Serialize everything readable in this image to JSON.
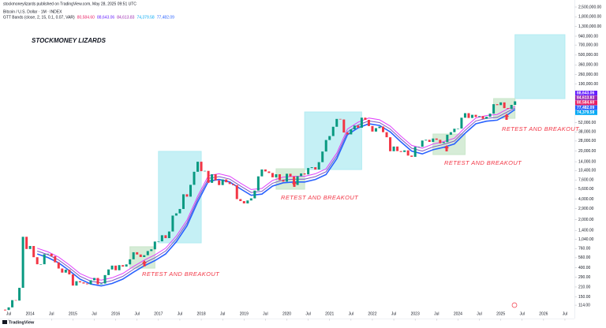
{
  "header": {
    "publisher": "stockmoneylizards published on TradingView.com, May 28, 2025 09:51 UTC",
    "symbol": "Bitcoin / U.S. Dollar · 1M · INDEX",
    "indicator": "GTT Bands (close, 2, 15, 0.1, 0.07, VAR)",
    "logo": "TradingView"
  },
  "chart_data": {
    "type": "candlestick",
    "title": "STOCKMONEY LIZARDS",
    "log_scale": true,
    "grid": false,
    "up_color": "#089981",
    "down_color": "#f23645",
    "x": [
      "2013-06",
      "2013-07",
      "2013-08",
      "2013-09",
      "2013-10",
      "2013-11",
      "2013-12",
      "2014-01",
      "2014-02",
      "2014-03",
      "2014-04",
      "2014-05",
      "2014-06",
      "2014-07",
      "2014-08",
      "2014-09",
      "2014-10",
      "2014-11",
      "2014-12",
      "2015-01",
      "2015-02",
      "2015-03",
      "2015-04",
      "2015-05",
      "2015-06",
      "2015-07",
      "2015-08",
      "2015-09",
      "2015-10",
      "2015-11",
      "2015-12",
      "2016-01",
      "2016-02",
      "2016-03",
      "2016-04",
      "2016-05",
      "2016-06",
      "2016-07",
      "2016-08",
      "2016-09",
      "2016-10",
      "2016-11",
      "2016-12",
      "2017-01",
      "2017-02",
      "2017-03",
      "2017-04",
      "2017-05",
      "2017-06",
      "2017-07",
      "2017-08",
      "2017-09",
      "2017-10",
      "2017-11",
      "2017-12",
      "2018-01",
      "2018-02",
      "2018-03",
      "2018-04",
      "2018-05",
      "2018-06",
      "2018-07",
      "2018-08",
      "2018-09",
      "2018-10",
      "2018-11",
      "2018-12",
      "2019-01",
      "2019-02",
      "2019-03",
      "2019-04",
      "2019-05",
      "2019-06",
      "2019-07",
      "2019-08",
      "2019-09",
      "2019-10",
      "2019-11",
      "2019-12",
      "2020-01",
      "2020-02",
      "2020-03",
      "2020-04",
      "2020-05",
      "2020-06",
      "2020-07",
      "2020-08",
      "2020-09",
      "2020-10",
      "2020-11",
      "2020-12",
      "2021-01",
      "2021-02",
      "2021-03",
      "2021-04",
      "2021-05",
      "2021-06",
      "2021-07",
      "2021-08",
      "2021-09",
      "2021-10",
      "2021-11",
      "2021-12",
      "2022-01",
      "2022-02",
      "2022-03",
      "2022-04",
      "2022-05",
      "2022-06",
      "2022-07",
      "2022-08",
      "2022-09",
      "2022-10",
      "2022-11",
      "2022-12",
      "2023-01",
      "2023-02",
      "2023-03",
      "2023-04",
      "2023-05",
      "2023-06",
      "2023-07",
      "2023-08",
      "2023-09",
      "2023-10",
      "2023-11",
      "2023-12",
      "2024-01",
      "2024-02",
      "2024-03",
      "2024-04",
      "2024-05",
      "2024-06",
      "2024-07",
      "2024-08",
      "2024-09",
      "2024-10",
      "2024-11",
      "2024-12",
      "2025-01",
      "2025-02",
      "2025-03",
      "2025-04",
      "2025-05"
    ],
    "values": [
      97,
      106,
      135,
      133,
      204,
      1130,
      750,
      830,
      570,
      450,
      450,
      630,
      640,
      590,
      480,
      390,
      340,
      375,
      320,
      220,
      255,
      245,
      236,
      230,
      263,
      284,
      230,
      236,
      313,
      378,
      430,
      368,
      437,
      416,
      448,
      531,
      673,
      624,
      573,
      609,
      700,
      742,
      963,
      970,
      1190,
      1080,
      1350,
      2300,
      2480,
      2870,
      4700,
      4340,
      6450,
      10000,
      14000,
      10200,
      10300,
      6900,
      9200,
      7500,
      6400,
      7730,
      7030,
      6630,
      6370,
      4000,
      3740,
      3460,
      3820,
      4100,
      5320,
      8570,
      10800,
      10100,
      9600,
      8300,
      9200,
      7550,
      7190,
      9350,
      8550,
      6420,
      8620,
      9450,
      9140,
      11330,
      11650,
      10780,
      13800,
      19700,
      29000,
      33100,
      45200,
      58800,
      57700,
      37300,
      35000,
      41500,
      47100,
      43800,
      61300,
      57000,
      46300,
      38500,
      43200,
      45500,
      37700,
      31800,
      19900,
      23300,
      20000,
      19400,
      20500,
      17200,
      16500,
      23100,
      23100,
      28500,
      29200,
      27200,
      30500,
      29200,
      26000,
      27000,
      34600,
      37700,
      42300,
      42600,
      61200,
      71300,
      60700,
      67500,
      62700,
      64600,
      59000,
      63300,
      70200,
      96400,
      93400,
      102400,
      84400,
      82500,
      94200,
      106000
    ],
    "bands_x": [
      "2014-03",
      "2014-06",
      "2014-09",
      "2014-12",
      "2015-03",
      "2015-06",
      "2015-09",
      "2015-12",
      "2016-03",
      "2016-06",
      "2016-09",
      "2016-12",
      "2017-03",
      "2017-06",
      "2017-09",
      "2017-12",
      "2018-03",
      "2018-06",
      "2018-09",
      "2018-12",
      "2019-03",
      "2019-06",
      "2019-09",
      "2019-12",
      "2020-03",
      "2020-06",
      "2020-09",
      "2020-12",
      "2021-03",
      "2021-06",
      "2021-09",
      "2021-12",
      "2022-03",
      "2022-06",
      "2022-09",
      "2022-12",
      "2023-03",
      "2023-06",
      "2023-09",
      "2023-12",
      "2024-03",
      "2024-06",
      "2024-09",
      "2024-12",
      "2025-03",
      "2025-05"
    ],
    "bands": [
      {
        "color": "#e040fb",
        "values": [
          770,
          682,
          572,
          440,
          330,
          281,
          264,
          286,
          330,
          418,
          517,
          616,
          770,
          1155,
          1980,
          4400,
          8800,
          9350,
          8580,
          6820,
          5500,
          5720,
          7480,
          8360,
          8580,
          8580,
          9350,
          11000,
          18700,
          41800,
          52800,
          60500,
          57200,
          46200,
          33000,
          24200,
          22000,
          25300,
          27500,
          30800,
          44000,
          60500,
          66000,
          68200,
          82500,
          88643.06
        ]
      },
      {
        "color": "#7e57c2",
        "values": [
          700,
          620,
          520,
          400,
          300,
          255,
          240,
          260,
          300,
          380,
          470,
          560,
          700,
          1050,
          1800,
          4000,
          8000,
          8500,
          7800,
          6200,
          5000,
          5200,
          6800,
          7600,
          7800,
          7800,
          8500,
          10000,
          17000,
          38000,
          48000,
          55000,
          52000,
          42000,
          30000,
          22000,
          20000,
          23000,
          25000,
          28000,
          40000,
          55000,
          60000,
          62000,
          75000,
          84613.83
        ]
      },
      {
        "color": "#2962ff",
        "values": [
          636,
          564,
          473,
          364,
          273,
          232,
          218,
          236,
          273,
          345,
          427,
          509,
          636,
          955,
          1636,
          3636,
          7273,
          7727,
          7091,
          5636,
          4545,
          4727,
          6182,
          6909,
          7091,
          7091,
          7727,
          9091,
          15455,
          34545,
          43636,
          50000,
          47273,
          38182,
          27273,
          20000,
          18182,
          20909,
          22727,
          25455,
          36364,
          50000,
          54545,
          56364,
          68182,
          80584.6
        ]
      }
    ],
    "price_labels": [
      {
        "value": 88643.06,
        "label": "88,643.06",
        "color": "#651fff"
      },
      {
        "value": 84613.83,
        "label": "84,613.83",
        "color": "#9c27b0"
      },
      {
        "value": 80584.6,
        "label": "80,584.60",
        "color": "#e91e63"
      },
      {
        "value": 77482.09,
        "label": "77,482.09",
        "color": "#2962ff"
      },
      {
        "value": 74379.58,
        "label": "74,379.58",
        "color": "#03a9f4"
      }
    ],
    "boxes": [
      {
        "x": [
          "2017-01",
          "2018-01"
        ],
        "y": [
          922,
          19800
        ],
        "color": "#b2ebf2"
      },
      {
        "x": [
          "2020-06",
          "2021-10"
        ],
        "y": [
          10770,
          74200
        ],
        "color": "#b2ebf2"
      },
      {
        "x": [
          "2025-05",
          "2026-07"
        ],
        "y": [
          116300,
          990000
        ],
        "color": "#b2ebf2"
      },
      {
        "x": [
          "2016-05",
          "2016-12"
        ],
        "y": [
          395,
          809
        ],
        "color": "#c8e6c9"
      },
      {
        "x": [
          "2019-10",
          "2020-06"
        ],
        "y": [
          5570,
          11050
        ],
        "color": "#c8e6c9"
      },
      {
        "x": [
          "2023-06",
          "2024-03"
        ],
        "y": [
          17800,
          35420
        ],
        "color": "#c8e6c9"
      },
      {
        "x": [
          "2024-11",
          "2025-05"
        ],
        "y": [
          60000,
          116300
        ],
        "color": "#c8e6c9"
      }
    ],
    "annotations": [
      "RETEST AND BREAKOUT",
      "RETEST AND BREAKOUT",
      "RETEST AND BREAKOUT",
      "RETEST AND BREAKOUT"
    ],
    "xlim": [
      "2013-05",
      "2026-09"
    ],
    "xticks": [
      {
        "value": "2013-07",
        "label": "Jul"
      },
      {
        "value": "2014-01",
        "label": "2014"
      },
      {
        "value": "2014-07",
        "label": "Jul"
      },
      {
        "value": "2015-01",
        "label": "2015"
      },
      {
        "value": "2015-07",
        "label": "Jul"
      },
      {
        "value": "2016-01",
        "label": "2016"
      },
      {
        "value": "2016-07",
        "label": "Jul"
      },
      {
        "value": "2017-01",
        "label": "2017"
      },
      {
        "value": "2017-07",
        "label": "Jul"
      },
      {
        "value": "2018-01",
        "label": "2018"
      },
      {
        "value": "2018-07",
        "label": "Jul"
      },
      {
        "value": "2019-01",
        "label": "2019"
      },
      {
        "value": "2019-07",
        "label": "Jul"
      },
      {
        "value": "2020-01",
        "label": "2020"
      },
      {
        "value": "2020-07",
        "label": "Jul"
      },
      {
        "value": "2021-01",
        "label": "2021"
      },
      {
        "value": "2021-07",
        "label": "Jul"
      },
      {
        "value": "2022-01",
        "label": "2022"
      },
      {
        "value": "2022-07",
        "label": "Jul"
      },
      {
        "value": "2023-01",
        "label": "2023"
      },
      {
        "value": "2023-07",
        "label": "Jul"
      },
      {
        "value": "2024-01",
        "label": "2024"
      },
      {
        "value": "2024-07",
        "label": "Jul"
      },
      {
        "value": "2025-01",
        "label": "2025"
      },
      {
        "value": "2025-07",
        "label": "Jul"
      },
      {
        "value": "2026-01",
        "label": "2026"
      },
      {
        "value": "2026-07",
        "label": "Jul"
      }
    ],
    "ylim": [
      81,
      3170000
    ],
    "yticks": [
      {
        "value": 2500000,
        "label": "2,500,000.00"
      },
      {
        "value": 1800000,
        "label": "1,800,000.00"
      },
      {
        "value": 1300000,
        "label": "1,300,000.00"
      },
      {
        "value": 940000,
        "label": "940,000.00"
      },
      {
        "value": 700000,
        "label": "700,000.00"
      },
      {
        "value": 500000,
        "label": "500,000.00"
      },
      {
        "value": 360000,
        "label": "360,000.00"
      },
      {
        "value": 260000,
        "label": "260,000.00"
      },
      {
        "value": 190000,
        "label": "190,000.00"
      },
      {
        "value": 52000,
        "label": "52,000.00"
      },
      {
        "value": 38000,
        "label": "38,000.00"
      },
      {
        "value": 28000,
        "label": "28,000.00"
      },
      {
        "value": 20000,
        "label": "20,000.00"
      },
      {
        "value": 14000,
        "label": "14,000.00"
      },
      {
        "value": 10400,
        "label": "10,400.00"
      },
      {
        "value": 7600,
        "label": "7,600.00"
      },
      {
        "value": 5600,
        "label": "5,600.00"
      },
      {
        "value": 4000,
        "label": "4,000.00"
      },
      {
        "value": 2900,
        "label": "2,900.00"
      },
      {
        "value": 2000,
        "label": "2,000.00"
      },
      {
        "value": 1400,
        "label": "1,400.00"
      },
      {
        "value": 1040,
        "label": "1,040.00"
      },
      {
        "value": 760,
        "label": "760.00"
      },
      {
        "value": 560,
        "label": "560.00"
      },
      {
        "value": 400,
        "label": "400.00"
      },
      {
        "value": 290,
        "label": "290.00"
      },
      {
        "value": 210,
        "label": "210.00"
      },
      {
        "value": 150,
        "label": "150.00"
      },
      {
        "value": 114,
        "label": "114.00"
      }
    ]
  }
}
